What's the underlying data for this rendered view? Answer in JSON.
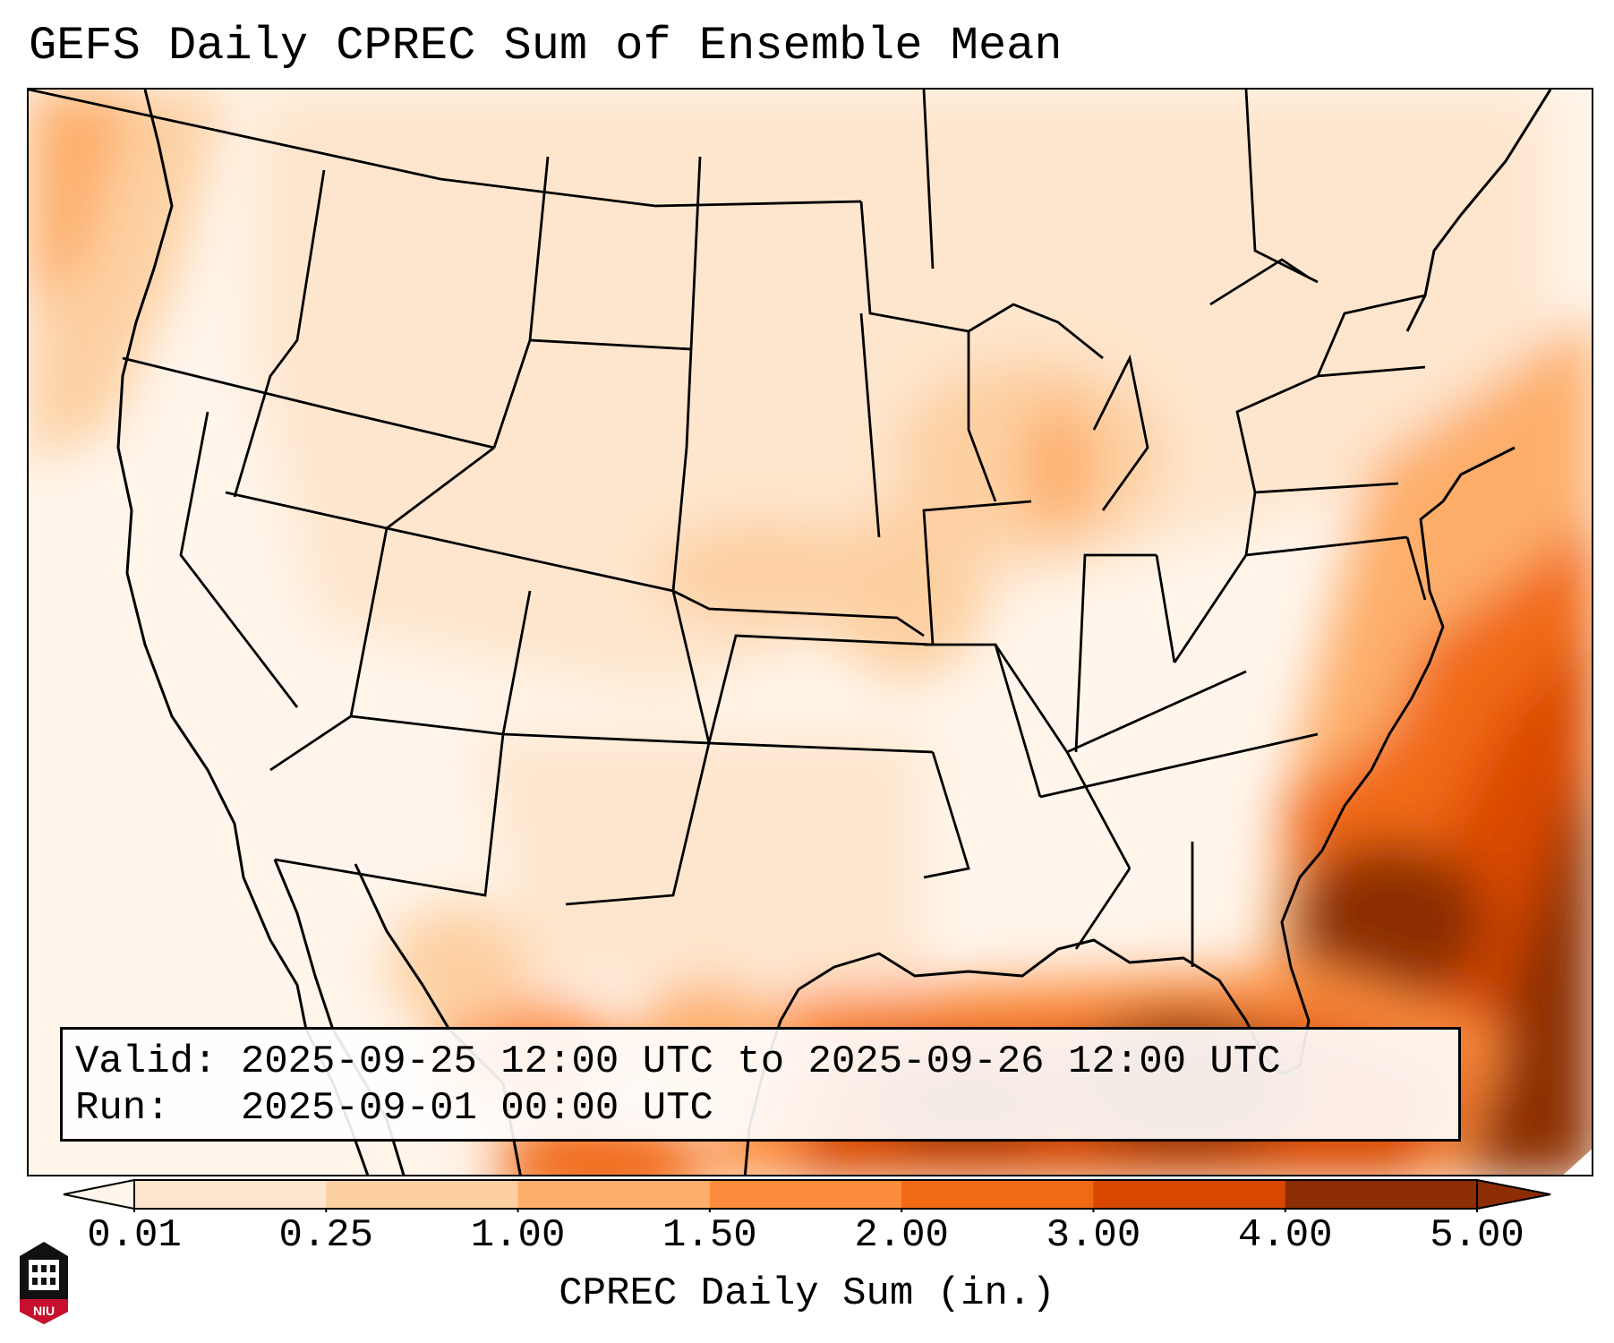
{
  "title": "GEFS Daily CPREC Sum of Ensemble Mean",
  "valid": {
    "label": "Valid:",
    "value": "2025-09-25 12:00 UTC to 2025-09-26 12:00 UTC"
  },
  "run": {
    "label": "Run:",
    "value": "2025-09-01 00:00 UTC"
  },
  "colorbar": {
    "label": "CPREC Daily Sum (in.)",
    "ticks": [
      "0.01",
      "0.25",
      "1.00",
      "1.50",
      "2.00",
      "3.00",
      "4.00",
      "5.00"
    ],
    "colors": [
      "#fff5eb",
      "#fee6ce",
      "#fdd0a2",
      "#fdae6b",
      "#fd8d3c",
      "#f16913",
      "#d94801",
      "#8c2d04"
    ]
  },
  "logo": {
    "text": "NIU"
  }
}
